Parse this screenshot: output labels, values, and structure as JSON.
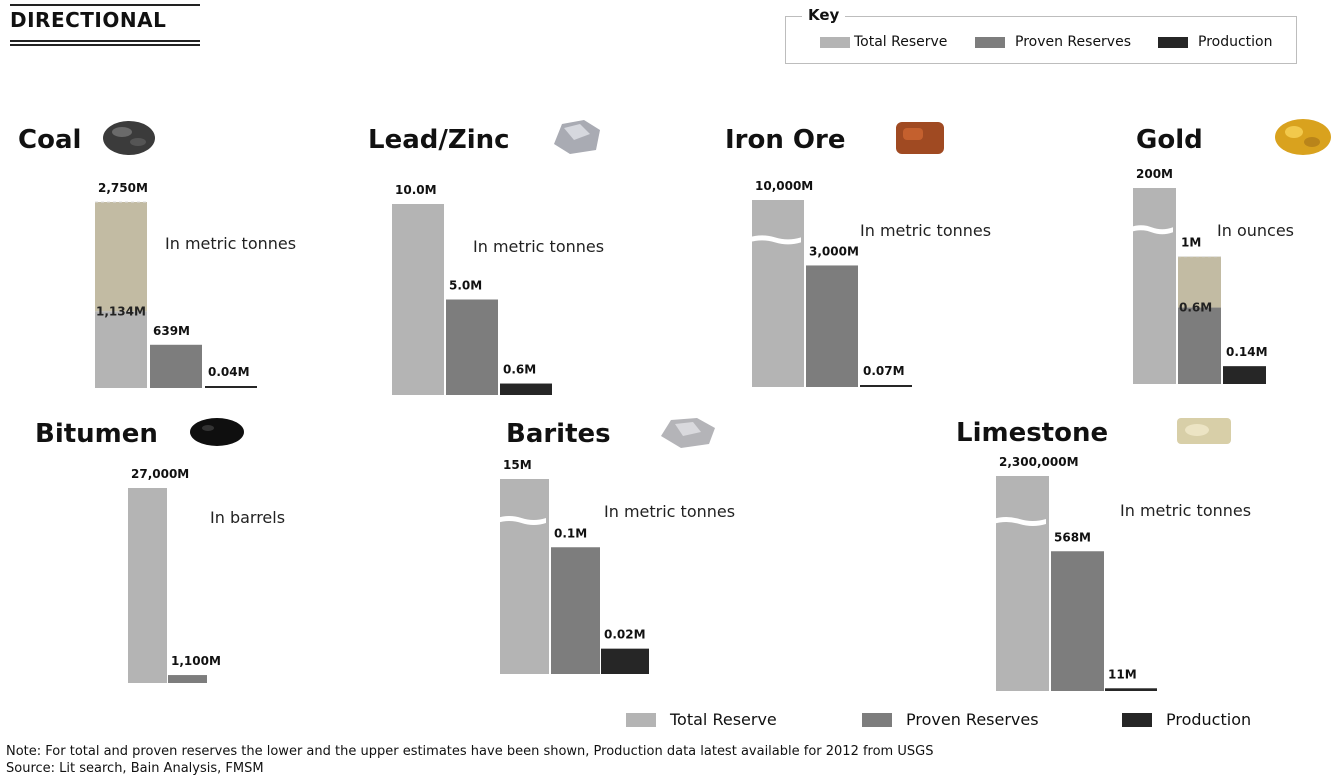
{
  "header": {
    "title": "DIRECTIONAL"
  },
  "key": {
    "title": "Key",
    "items": [
      "Total Reserve",
      "Proven Reserves",
      "Production"
    ]
  },
  "colors": {
    "total": "#b4b4b4",
    "proven": "#7d7d7d",
    "production": "#262626",
    "estimate_band": "#c2bba3"
  },
  "chart_data": [
    {
      "type": "bar",
      "title": "Coal",
      "unit_note": "In metric tonnes",
      "icon": "coal-lump-icon",
      "categories": [
        "Total Reserve",
        "Proven Reserves",
        "Production"
      ],
      "values": [
        2750,
        639,
        0.04
      ],
      "data_labels": [
        "2,750M",
        "639M",
        "0.04M"
      ],
      "lower_estimates": [
        1134,
        null,
        null
      ],
      "lower_labels": [
        "1,134M",
        "",
        ""
      ],
      "axis_break": false
    },
    {
      "type": "bar",
      "title": "Lead/Zinc",
      "unit_note": "In metric tonnes",
      "icon": "lead-zinc-ore-icon",
      "categories": [
        "Total Reserve",
        "Proven Reserves",
        "Production"
      ],
      "values": [
        10.0,
        5.0,
        0.6
      ],
      "data_labels": [
        "10.0M",
        "5.0M",
        "0.6M"
      ],
      "axis_break": false
    },
    {
      "type": "bar",
      "title": "Iron Ore",
      "unit_note": "In metric tonnes",
      "icon": "iron-ore-icon",
      "categories": [
        "Total Reserve",
        "Proven Reserves",
        "Production"
      ],
      "values": [
        10000,
        3000,
        0.07
      ],
      "data_labels": [
        "10,000M",
        "3,000M",
        "0.07M"
      ],
      "axis_break": true
    },
    {
      "type": "bar",
      "title": "Gold",
      "unit_note": "In ounces",
      "icon": "gold-nugget-icon",
      "categories": [
        "Total Reserve",
        "Proven Reserves",
        "Production"
      ],
      "values": [
        200,
        1,
        0.14
      ],
      "data_labels": [
        "200M",
        "1M",
        "0.14M"
      ],
      "lower_estimates": [
        null,
        0.6,
        null
      ],
      "lower_labels": [
        "",
        "0.6M",
        ""
      ],
      "axis_break": true
    },
    {
      "type": "bar",
      "title": "Bitumen",
      "unit_note": "In barrels",
      "icon": "bitumen-icon",
      "categories": [
        "Total Reserve",
        "Proven Reserves"
      ],
      "values": [
        27000,
        1100
      ],
      "data_labels": [
        "27,000M",
        "1,100M"
      ],
      "axis_break": false
    },
    {
      "type": "bar",
      "title": "Barites",
      "unit_note": "In metric tonnes",
      "icon": "barite-rock-icon",
      "categories": [
        "Total Reserve",
        "Proven Reserves",
        "Production"
      ],
      "values": [
        15,
        0.1,
        0.02
      ],
      "data_labels": [
        "15M",
        "0.1M",
        "0.02M"
      ],
      "axis_break": true
    },
    {
      "type": "bar",
      "title": "Limestone",
      "unit_note": "In metric tonnes",
      "icon": "limestone-rock-icon",
      "categories": [
        "Total Reserve",
        "Proven Reserves",
        "Production"
      ],
      "values": [
        2300000,
        568,
        11
      ],
      "data_labels": [
        "2,300,000M",
        "568M",
        "11M"
      ],
      "axis_break": true
    }
  ],
  "legend": {
    "items": [
      "Total Reserve",
      "Proven Reserves",
      "Production"
    ]
  },
  "footer": {
    "note": "Note: For total and proven reserves the lower and the upper estimates have been shown, Production data latest available for 2012 from USGS",
    "source": "Source: Lit search, Bain Analysis, FMSM"
  }
}
